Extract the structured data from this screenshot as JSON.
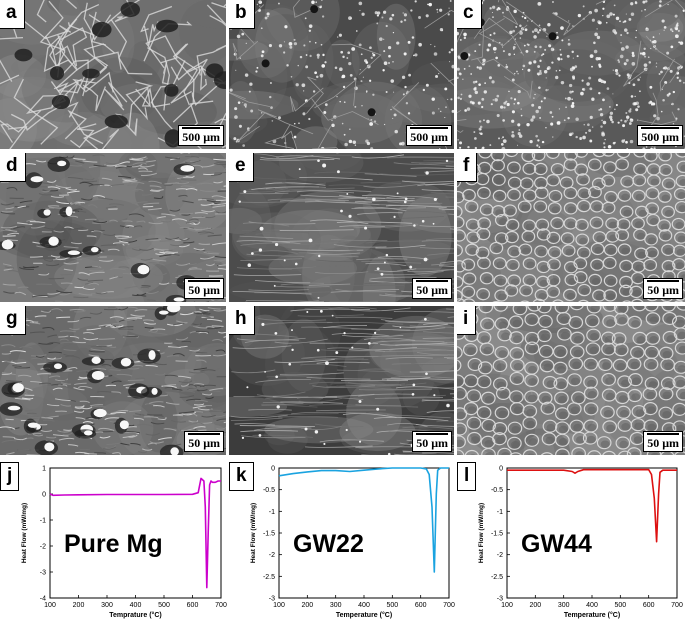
{
  "micrographs": [
    {
      "label": "a",
      "scale": "500 μm"
    },
    {
      "label": "b",
      "scale": "500 μm"
    },
    {
      "label": "c",
      "scale": "500 μm"
    },
    {
      "label": "d",
      "scale": "50 μm"
    },
    {
      "label": "e",
      "scale": "50 μm"
    },
    {
      "label": "f",
      "scale": "50 μm"
    },
    {
      "label": "g",
      "scale": "50 μm"
    },
    {
      "label": "h",
      "scale": "50 μm"
    },
    {
      "label": "i",
      "scale": "50 μm"
    }
  ],
  "chart_data": [
    {
      "type": "line",
      "panel_label": "j",
      "annotation": "Pure Mg",
      "xlabel": "Temprature (°C)",
      "ylabel": "Heat Flow (mW/mg)",
      "xlim": [
        100,
        700
      ],
      "ylim": [
        -4,
        1
      ],
      "xticks": [
        100,
        200,
        300,
        400,
        500,
        600,
        700
      ],
      "yticks": [
        1,
        0,
        -1,
        -2,
        -3,
        -4
      ],
      "color": "#cc00cc",
      "series": [
        {
          "x": [
            100,
            110,
            150,
            200,
            300,
            400,
            500,
            600,
            620,
            630,
            640,
            645,
            650,
            655,
            660,
            665,
            670,
            680,
            690,
            700
          ],
          "y": [
            0.0,
            -0.05,
            -0.04,
            -0.03,
            -0.02,
            -0.02,
            -0.02,
            -0.01,
            0.05,
            0.6,
            0.5,
            -0.5,
            -3.6,
            -1.5,
            0.35,
            0.5,
            0.45,
            0.45,
            0.5,
            0.5
          ]
        }
      ]
    },
    {
      "type": "line",
      "panel_label": "k",
      "annotation": "GW22",
      "xlabel": "Temperature (°C)",
      "ylabel": "Heat Flow (mW/mg)",
      "xlim": [
        100,
        700
      ],
      "ylim": [
        -3,
        0
      ],
      "xticks": [
        100,
        200,
        300,
        400,
        500,
        600,
        700
      ],
      "yticks": [
        0,
        -0.5,
        -1,
        -1.5,
        -2,
        -2.5,
        -3
      ],
      "color": "#1aa3e0",
      "series": [
        {
          "x": [
            100,
            150,
            200,
            250,
            300,
            350,
            400,
            450,
            500,
            550,
            600,
            620,
            630,
            640,
            648,
            655,
            660,
            670,
            700
          ],
          "y": [
            -0.18,
            -0.13,
            -0.09,
            -0.06,
            -0.06,
            -0.08,
            -0.05,
            -0.02,
            0.0,
            0.0,
            0.0,
            -0.02,
            -0.15,
            -0.9,
            -2.4,
            -0.6,
            -0.05,
            0.0,
            0.0
          ]
        }
      ]
    },
    {
      "type": "line",
      "panel_label": "l",
      "annotation": "GW44",
      "xlabel": "Temperature (°C)",
      "ylabel": "Heat Flow (mW/mg)",
      "xlim": [
        100,
        700
      ],
      "ylim": [
        -3,
        0
      ],
      "xticks": [
        100,
        200,
        300,
        400,
        500,
        600,
        700
      ],
      "yticks": [
        0,
        -0.5,
        -1,
        -1.5,
        -2,
        -2.5,
        -3
      ],
      "color": "#dd1111",
      "series": [
        {
          "x": [
            100,
            200,
            300,
            330,
            340,
            350,
            370,
            400,
            500,
            600,
            610,
            620,
            628,
            635,
            640,
            650,
            700
          ],
          "y": [
            -0.05,
            -0.05,
            -0.05,
            -0.08,
            -0.12,
            -0.08,
            -0.04,
            -0.04,
            -0.04,
            -0.04,
            -0.15,
            -0.7,
            -1.7,
            -0.6,
            -0.1,
            -0.05,
            -0.05
          ]
        }
      ]
    }
  ]
}
